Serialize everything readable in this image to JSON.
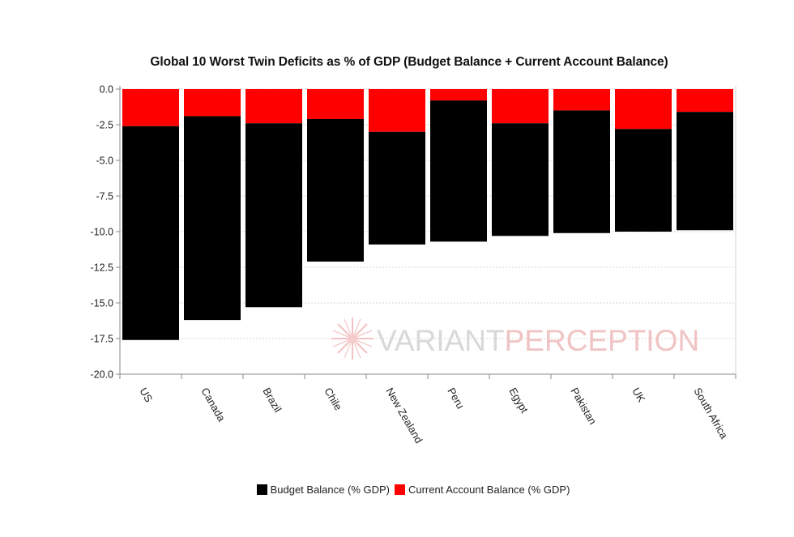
{
  "chart_data": {
    "type": "bar",
    "stacked": true,
    "title": "Global 10 Worst Twin Deficits as % of GDP (Budget Balance + Current Account Balance)",
    "categories": [
      "US",
      "Canada",
      "Brazil",
      "Chile",
      "New Zealand",
      "Peru",
      "Egypt",
      "Pakistan",
      "UK",
      "South Africa"
    ],
    "series": [
      {
        "name": "Budget Balance (% GDP)",
        "color": "#000000",
        "values": [
          -15.0,
          -14.3,
          -12.9,
          -10.0,
          -7.9,
          -9.9,
          -7.9,
          -8.6,
          -7.2,
          -8.3
        ]
      },
      {
        "name": "Current Account Balance (% GDP)",
        "color": "#ff0000",
        "values": [
          -2.6,
          -1.9,
          -2.4,
          -2.1,
          -3.0,
          -0.8,
          -2.4,
          -1.5,
          -2.8,
          -1.6
        ]
      }
    ],
    "totals": [
      -17.6,
      -16.2,
      -15.3,
      -12.1,
      -10.9,
      -10.7,
      -10.3,
      -10.1,
      -10.0,
      -9.9
    ],
    "yticks": [
      "0.0",
      "-2.5",
      "-5.0",
      "-7.5",
      "-10.0",
      "-12.5",
      "-15.0",
      "-17.5",
      "-20.0"
    ],
    "ylim": [
      -20,
      0
    ],
    "grid": true,
    "legend_position": "bottom",
    "watermark": [
      "VARIANT",
      "PERCEPTION"
    ]
  }
}
